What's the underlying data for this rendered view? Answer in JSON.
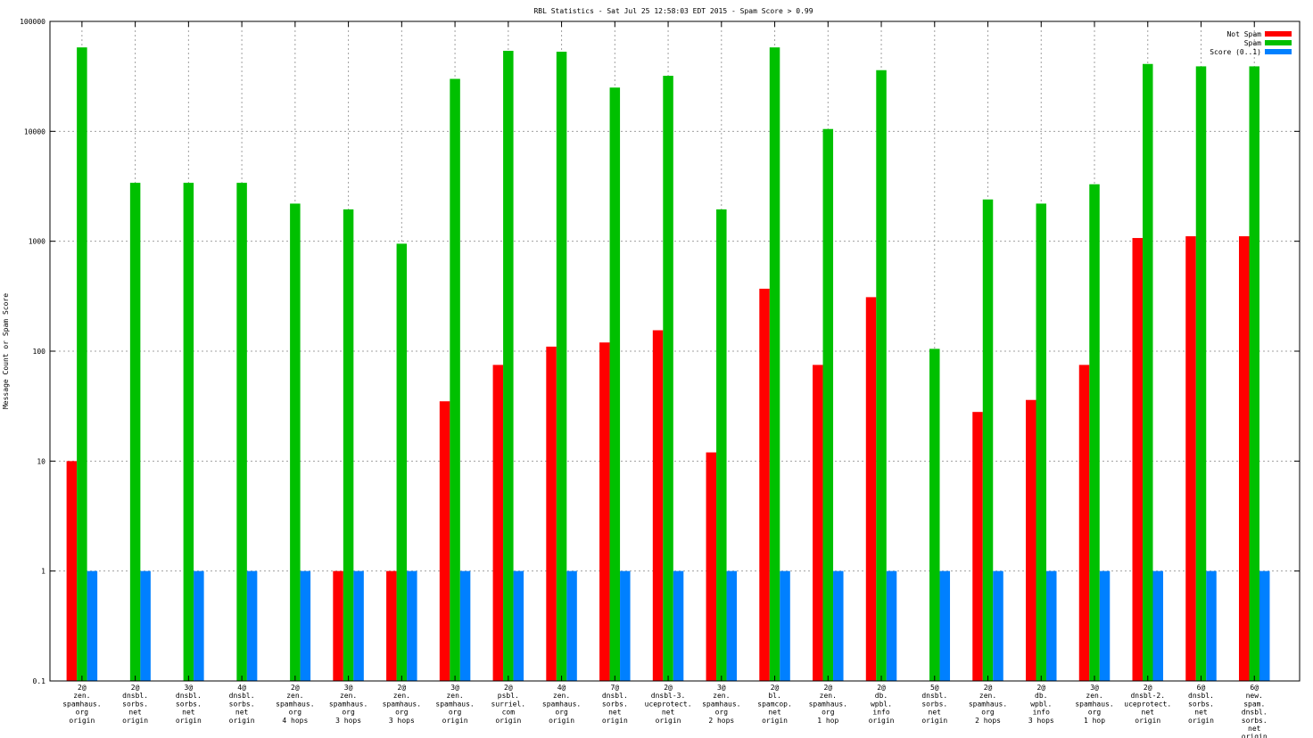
{
  "chart_data": {
    "type": "bar",
    "title": "RBL Statistics - Sat Jul 25 12:58:03 EDT 2015 - Spam Score > 0.99",
    "xlabel": "",
    "ylabel": "Message Count or Spam Score",
    "yscale": "log",
    "ylim": [
      0.1,
      100000
    ],
    "yticks": [
      "0.1",
      "1",
      "10",
      "100",
      "1000",
      "10000",
      "100000"
    ],
    "grid": true,
    "legend_position": "top-right",
    "categories": [
      [
        "2@",
        "zen.",
        "spamhaus.",
        "org",
        "origin"
      ],
      [
        "2@",
        "dnsbl.",
        "sorbs.",
        "net",
        "origin"
      ],
      [
        "3@",
        "dnsbl.",
        "sorbs.",
        "net",
        "origin"
      ],
      [
        "4@",
        "dnsbl.",
        "sorbs.",
        "net",
        "origin"
      ],
      [
        "2@",
        "zen.",
        "spamhaus.",
        "org",
        "4 hops"
      ],
      [
        "3@",
        "zen.",
        "spamhaus.",
        "org",
        "3 hops"
      ],
      [
        "2@",
        "zen.",
        "spamhaus.",
        "org",
        "3 hops"
      ],
      [
        "3@",
        "zen.",
        "spamhaus.",
        "org",
        "origin"
      ],
      [
        "2@",
        "psbl.",
        "surriel.",
        "com",
        "origin"
      ],
      [
        "4@",
        "zen.",
        "spamhaus.",
        "org",
        "origin"
      ],
      [
        "7@",
        "dnsbl.",
        "sorbs.",
        "net",
        "origin"
      ],
      [
        "2@",
        "dnsbl-3.",
        "uceprotect.",
        "net",
        "origin"
      ],
      [
        "3@",
        "zen.",
        "spamhaus.",
        "org",
        "2 hops"
      ],
      [
        "2@",
        "bl.",
        "spamcop.",
        "net",
        "origin"
      ],
      [
        "2@",
        "zen.",
        "spamhaus.",
        "org",
        "1 hop"
      ],
      [
        "2@",
        "db.",
        "wpbl.",
        "info",
        "origin"
      ],
      [
        "5@",
        "dnsbl.",
        "sorbs.",
        "net",
        "origin"
      ],
      [
        "2@",
        "zen.",
        "spamhaus.",
        "org",
        "2 hops"
      ],
      [
        "2@",
        "db.",
        "wpbl.",
        "info",
        "3 hops"
      ],
      [
        "3@",
        "zen.",
        "spamhaus.",
        "org",
        "1 hop"
      ],
      [
        "2@",
        "dnsbl-2.",
        "uceprotect.",
        "net",
        "origin"
      ],
      [
        "6@",
        "dnsbl.",
        "sorbs.",
        "net",
        "origin"
      ],
      [
        "6@",
        "new.",
        "spam.",
        "dnsbl.",
        "sorbs.",
        "net",
        "origin"
      ]
    ],
    "series": [
      {
        "name": "Not Spam",
        "color": "#ff0000",
        "values": [
          10,
          null,
          null,
          null,
          null,
          1,
          1,
          35,
          75,
          110,
          120,
          155,
          12,
          370,
          75,
          310,
          null,
          28,
          36,
          75,
          1070,
          1110,
          1110
        ]
      },
      {
        "name": "Spam",
        "color": "#00c000",
        "values": [
          58000,
          3400,
          3400,
          3400,
          2200,
          1950,
          950,
          30000,
          54000,
          53000,
          25000,
          32000,
          1950,
          58000,
          10500,
          36000,
          105,
          2400,
          2200,
          3300,
          41000,
          39000,
          39000
        ]
      },
      {
        "name": "Score (0..1)",
        "color": "#0080ff",
        "values": [
          1,
          1,
          1,
          1,
          1,
          1,
          1,
          1,
          1,
          1,
          1,
          1,
          1,
          1,
          1,
          1,
          1,
          1,
          1,
          1,
          1,
          1,
          1
        ]
      }
    ]
  }
}
